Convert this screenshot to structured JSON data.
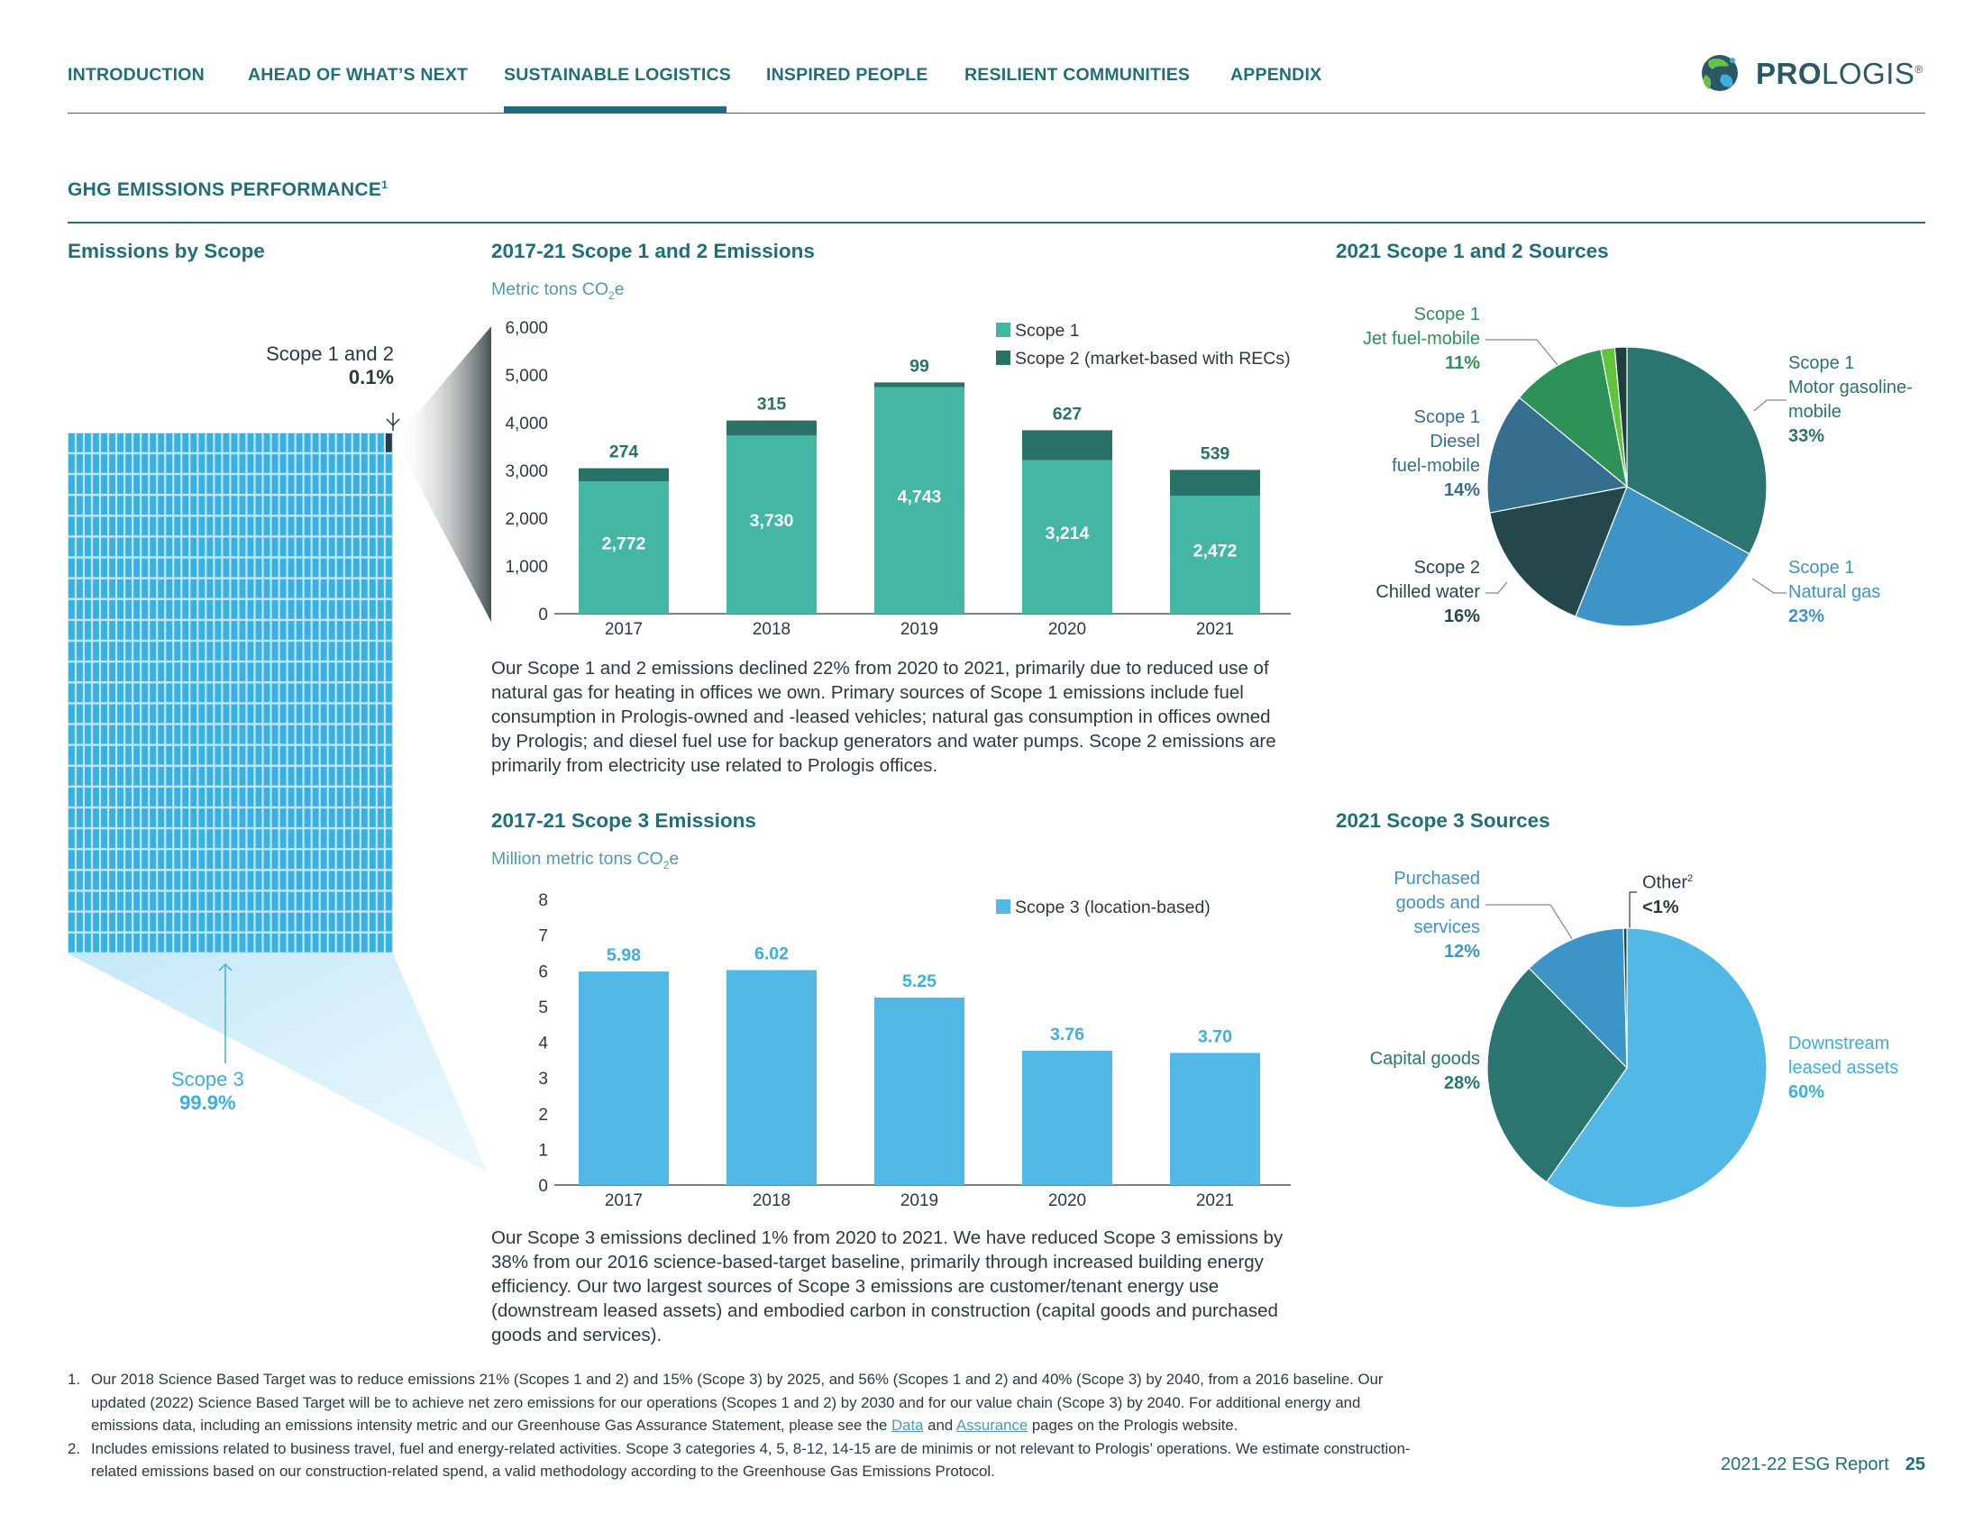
{
  "nav": {
    "items": [
      "INTRODUCTION",
      "AHEAD OF WHAT’S NEXT",
      "SUSTAINABLE LOGISTICS",
      "INSPIRED PEOPLE",
      "RESILIENT COMMUNITIES",
      "APPENDIX"
    ],
    "active": "SUSTAINABLE LOGISTICS"
  },
  "logo": {
    "bold": "PRO",
    "rest": "LOGIS",
    "mark": "®"
  },
  "section": {
    "title": "GHG EMISSIONS PERFORMANCE",
    "sup": "1"
  },
  "waffle": {
    "heading": "Emissions by Scope",
    "scope12_label": "Scope 1 and 2",
    "scope12_pct": "0.1%",
    "scope3_label": "Scope 3",
    "scope3_pct": "99.9%",
    "grid": "1000 cells (0.1% = 1 cell)"
  },
  "scope12_chart": {
    "heading": "2017-21 Scope 1 and 2 Emissions",
    "units_pre": "Metric tons CO",
    "units_sub": "2",
    "units_post": "e",
    "text": "Our Scope 1 and 2 emissions declined 22% from 2020 to 2021, primarily due to reduced use of natural gas for heating in offices we own. Primary sources of Scope 1 emissions include fuel consumption in Prologis-owned and -leased vehicles; natural gas consumption in offices owned by Prologis; and diesel fuel use for backup generators and water pumps. Scope 2 emissions are primarily from electricity use related to Prologis offices."
  },
  "scope3_chart": {
    "heading": "2017-21 Scope 3 Emissions",
    "units_pre": "Million metric tons CO",
    "units_sub": "2",
    "units_post": "e",
    "text": "Our Scope 3 emissions declined 1% from 2020 to 2021. We have reduced Scope 3 emissions by 38% from our 2016 science-based-target baseline, primarily through increased building energy efficiency. Our two largest sources of Scope 3 emissions are customer/tenant energy use (downstream leased assets) and embodied carbon in construction (capital goods and purchased goods and services)."
  },
  "pie12": {
    "heading": "2021 Scope 1 and 2 Sources",
    "labels": {
      "jet": [
        "Scope 1",
        "Jet fuel-mobile",
        "11%"
      ],
      "diesel": [
        "Scope 1",
        "Diesel",
        "fuel-mobile",
        "14%"
      ],
      "chilled": [
        "Scope 2",
        "Chilled water",
        "16%"
      ],
      "motor": [
        "Scope 1",
        "Motor gasoline-",
        "mobile",
        "33%"
      ],
      "natgas": [
        "Scope 1",
        "Natural gas",
        "23%"
      ]
    }
  },
  "pie3": {
    "heading": "2021 Scope 3 Sources",
    "labels": {
      "purchased": [
        "Purchased",
        "goods and",
        "services",
        "12%"
      ],
      "capital": [
        "Capital goods",
        "28%"
      ],
      "other": [
        "Other",
        "2",
        "<1%"
      ],
      "downstream": [
        "Downstream",
        "leased assets",
        "60%"
      ]
    }
  },
  "chart_data": [
    {
      "type": "bar",
      "title": "2017-21 Scope 1 and 2 Emissions",
      "ylabel": "Metric tons CO2e",
      "stacked": true,
      "categories": [
        "2017",
        "2018",
        "2019",
        "2020",
        "2021"
      ],
      "series": [
        {
          "name": "Scope 1",
          "values": [
            2772,
            3730,
            4743,
            3214,
            2472
          ],
          "color": "#43b6a4"
        },
        {
          "name": "Scope 2 (market-based with RECs)",
          "values": [
            274,
            315,
            99,
            627,
            539
          ],
          "color": "#2a7268"
        }
      ],
      "ylim": [
        0,
        6000
      ],
      "yticks": [
        "0",
        "1,000",
        "2,000",
        "3,000",
        "4,000",
        "5,000",
        "6,000"
      ],
      "value_labels_scope1": [
        "2,772",
        "3,730",
        "4,743",
        "3,214",
        "2,472"
      ],
      "value_labels_scope2": [
        "274",
        "315",
        "99",
        "627",
        "539"
      ],
      "legend": "top-right"
    },
    {
      "type": "bar",
      "title": "2017-21 Scope 3 Emissions",
      "ylabel": "Million metric tons CO2e",
      "categories": [
        "2017",
        "2018",
        "2019",
        "2020",
        "2021"
      ],
      "series": [
        {
          "name": "Scope 3 (location-based)",
          "values": [
            5.98,
            6.02,
            5.25,
            3.76,
            3.7
          ],
          "color": "#52b8e6"
        }
      ],
      "ylim": [
        0,
        8
      ],
      "yticks": [
        "0",
        "1",
        "2",
        "3",
        "4",
        "5",
        "6",
        "7",
        "8"
      ],
      "value_labels": [
        "5.98",
        "6.02",
        "5.25",
        "3.76",
        "3.70"
      ],
      "legend": "top-right"
    },
    {
      "type": "pie",
      "title": "2021 Scope 1 and 2 Sources",
      "slices": [
        {
          "label": "Scope 1 Motor gasoline-mobile",
          "value": 33,
          "color": "#2b7570"
        },
        {
          "label": "Scope 1 Natural gas",
          "value": 23,
          "color": "#3d94c8"
        },
        {
          "label": "Scope 2 Chilled water",
          "value": 16,
          "color": "#23474b"
        },
        {
          "label": "Scope 1 Diesel fuel-mobile",
          "value": 14,
          "color": "#356e8e"
        },
        {
          "label": "Scope 1 Jet fuel-mobile",
          "value": 11,
          "color": "#2e9157"
        },
        {
          "label": "",
          "value": 1.6,
          "color": "#62c43d"
        },
        {
          "label": "",
          "value": 1.4,
          "color": "#1e3f3f"
        }
      ]
    },
    {
      "type": "pie",
      "title": "2021 Scope 3 Sources",
      "slices": [
        {
          "label": "Downstream leased assets",
          "value": 60,
          "color": "#52b8e6"
        },
        {
          "label": "Capital goods",
          "value": 28,
          "color": "#2b7570"
        },
        {
          "label": "Purchased goods and services",
          "value": 12,
          "color": "#3d94c8"
        },
        {
          "label": "Other",
          "value": 0.4,
          "color": "#1e3f3f"
        }
      ]
    }
  ],
  "footnotes": [
    {
      "num": "1.",
      "pre": "Our 2018 Science Based Target was to reduce emissions 21% (Scopes 1 and 2) and 15% (Scope 3) by 2025, and 56% (Scopes 1 and 2) and 40% (Scope 3) by 2040, from a 2016 baseline. Our updated (2022) Science Based Target will be to achieve net zero emissions for our operations (Scopes 1 and 2) by 2030 and for our value chain (Scope 3) by 2040. For additional energy and emissions data, including an emissions intensity metric and our Greenhouse Gas Assurance Statement, please see the ",
      "link1": "Data",
      "mid": " and ",
      "link2": "Assurance",
      "post": " pages on the Prologis website."
    },
    {
      "num": "2.",
      "text": "Includes emissions related to business travel, fuel and energy-related activities. Scope 3 categories 4, 5, 8-12, 14-15 are de minimis or not relevant to Prologis’ operations. We estimate construction-related emissions based on our construction-related spend, a valid methodology according to the Greenhouse Gas Emissions Protocol."
    }
  ],
  "footer": {
    "report": "2021-22 ESG Report",
    "page": "25"
  }
}
